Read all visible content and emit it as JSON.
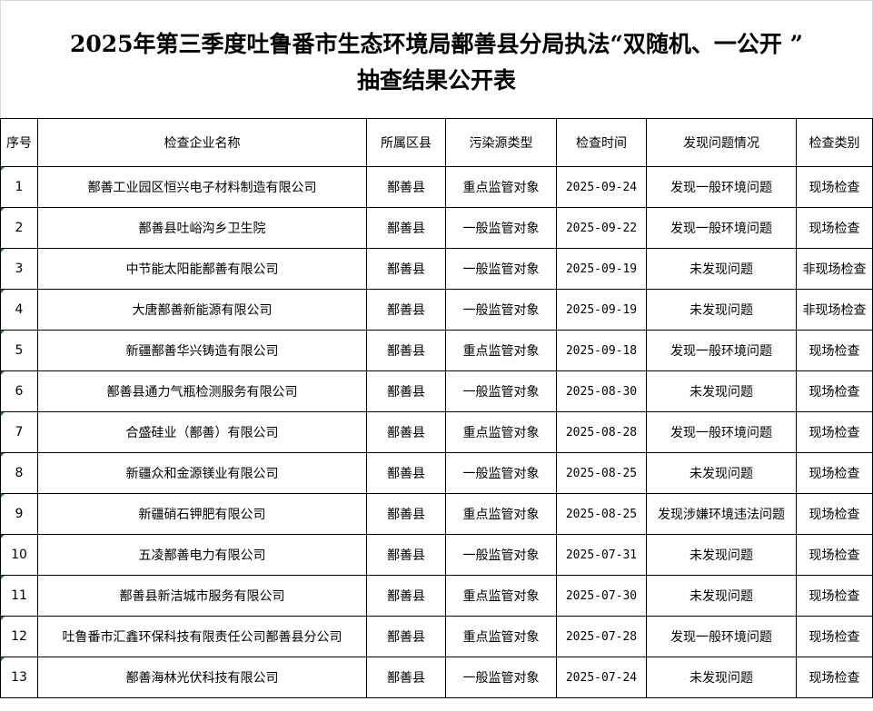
{
  "title": {
    "line1": "2025年第三季度吐鲁番市生态环境局鄯善县分局执法“双随机、一公开 ”",
    "line2": "抽查结果公开表"
  },
  "headers": [
    "序号",
    "检查企业名称",
    "所属区县",
    "污染源类型",
    "检查时间",
    "发现问题情况",
    "检查类别"
  ],
  "rows": [
    [
      "1",
      "鄯善工业园区恒兴电子材料制造有限公司",
      "鄯善县",
      "重点监管对象",
      "2025-09-24",
      "发现一般环境问题",
      "现场检查"
    ],
    [
      "2",
      "鄯善县吐峪沟乡卫生院",
      "鄯善县",
      "一般监管对象",
      "2025-09-22",
      "发现一般环境问题",
      "现场检查"
    ],
    [
      "3",
      "中节能太阳能鄯善有限公司",
      "鄯善县",
      "一般监管对象",
      "2025-09-19",
      "未发现问题",
      "非现场检查"
    ],
    [
      "4",
      "大唐鄯善新能源有限公司",
      "鄯善县",
      "一般监管对象",
      "2025-09-19",
      "未发现问题",
      "非现场检查"
    ],
    [
      "5",
      "新疆鄯善华兴铸造有限公司",
      "鄯善县",
      "重点监管对象",
      "2025-09-18",
      "发现一般环境问题",
      "现场检查"
    ],
    [
      "6",
      "鄯善县通力气瓶检测服务有限公司",
      "鄯善县",
      "一般监管对象",
      "2025-08-30",
      "未发现问题",
      "现场检查"
    ],
    [
      "7",
      "合盛硅业（鄯善）有限公司",
      "鄯善县",
      "重点监管对象",
      "2025-08-28",
      "发现一般环境问题",
      "现场检查"
    ],
    [
      "8",
      "新疆众和金源镁业有限公司",
      "鄯善县",
      "一般监管对象",
      "2025-08-25",
      "未发现问题",
      "现场检查"
    ],
    [
      "9",
      "新疆硝石钾肥有限公司",
      "鄯善县",
      "重点监管对象",
      "2025-08-25",
      "发现涉嫌环境违法问题",
      "现场检查"
    ],
    [
      "10",
      "五凌鄯善电力有限公司",
      "鄯善县",
      "一般监管对象",
      "2025-07-31",
      "未发现问题",
      "现场检查"
    ],
    [
      "11",
      "鄯善县新洁城市服务有限公司",
      "鄯善县",
      "重点监管对象",
      "2025-07-30",
      "未发现问题",
      "现场检查"
    ],
    [
      "12",
      "吐鲁番市汇鑫环保科技有限责任公司鄯善县分公司",
      "鄯善县",
      "重点监管对象",
      "2025-07-28",
      "发现一般环境问题",
      "现场检查"
    ],
    [
      "13",
      "鄯善海林光伏科技有限公司",
      "鄯善县",
      "一般监管对象",
      "2025-07-24",
      "未发现问题",
      "现场检查"
    ]
  ]
}
